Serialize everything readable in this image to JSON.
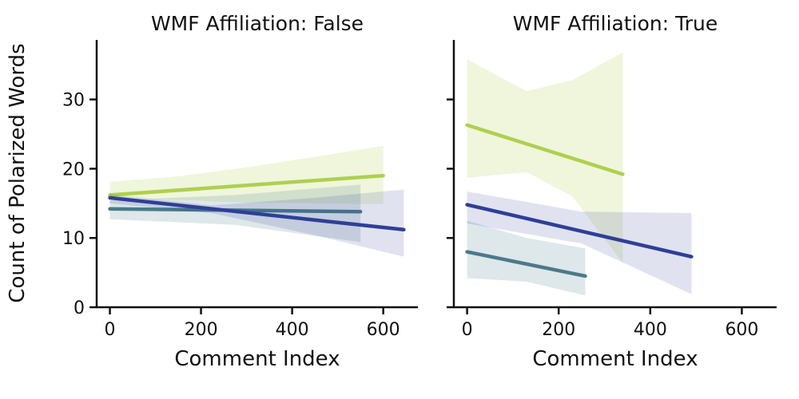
{
  "figure": {
    "background": "#ffffff",
    "text_color": "#111111"
  },
  "chart_data": {
    "type": "line",
    "description": "Two-panel regression plot (lmplot style) with confidence bands, no legend, no grid",
    "xlabel": "Comment Index",
    "ylabel": "Count of Polarized Words",
    "xlim": [
      -29,
      676
    ],
    "ylim": [
      0,
      38.6
    ],
    "xticks": [
      0,
      200,
      400,
      600
    ],
    "yticks": [
      0,
      10,
      20,
      30
    ],
    "grid": false,
    "legend": "none",
    "panels": [
      {
        "title": "WMF Affiliation: False",
        "series": [
          {
            "name": "yellowgreen",
            "color": "#aed04f",
            "band_color": "rgba(174,208,79,0.20)",
            "line": {
              "x": [
                0,
                600
              ],
              "y": [
                16.2,
                19.0
              ]
            },
            "ci_top": {
              "x": [
                0,
                150,
                300,
                450,
                600
              ],
              "y": [
                18.1,
                18.9,
                20.2,
                21.7,
                23.3
              ]
            },
            "ci_bottom": {
              "x": [
                0,
                150,
                300,
                450,
                600
              ],
              "y": [
                15.7,
                15.5,
                15.1,
                15.0,
                14.9
              ]
            }
          },
          {
            "name": "teal",
            "color": "#4a7a89",
            "band_color": "rgba(74,122,137,0.18)",
            "line": {
              "x": [
                0,
                550
              ],
              "y": [
                14.2,
                13.8
              ]
            },
            "ci_top": {
              "x": [
                0,
                275,
                550
              ],
              "y": [
                15.4,
                16.2,
                17.7
              ]
            },
            "ci_bottom": {
              "x": [
                0,
                275,
                550
              ],
              "y": [
                12.7,
                11.9,
                9.4
              ]
            }
          },
          {
            "name": "navy",
            "color": "#2e3f97",
            "band_color": "rgba(46,63,151,0.15)",
            "line": {
              "x": [
                0,
                645
              ],
              "y": [
                15.8,
                11.2
              ]
            },
            "ci_top": {
              "x": [
                0,
                223,
                450,
                645
              ],
              "y": [
                16.3,
                14.7,
                15.8,
                17.0
              ]
            },
            "ci_bottom": {
              "x": [
                0,
                223,
                450,
                645
              ],
              "y": [
                15.0,
                13.6,
                10.4,
                7.3
              ]
            }
          }
        ]
      },
      {
        "title": "WMF Affiliation: True",
        "series": [
          {
            "name": "yellowgreen",
            "color": "#aed04f",
            "band_color": "rgba(174,208,79,0.20)",
            "line": {
              "x": [
                0,
                340
              ],
              "y": [
                26.3,
                19.2
              ]
            },
            "ci_top": {
              "x": [
                0,
                130,
                230,
                340
              ],
              "y": [
                35.8,
                31.2,
                32.8,
                36.8
              ]
            },
            "ci_bottom": {
              "x": [
                0,
                130,
                230,
                340
              ],
              "y": [
                18.7,
                19.5,
                16.0,
                6.4
              ]
            }
          },
          {
            "name": "teal",
            "color": "#4a7a89",
            "band_color": "rgba(74,122,137,0.18)",
            "line": {
              "x": [
                0,
                258
              ],
              "y": [
                8.0,
                4.5
              ]
            },
            "ci_top": {
              "x": [
                0,
                130,
                258
              ],
              "y": [
                12.5,
                10.0,
                8.5
              ]
            },
            "ci_bottom": {
              "x": [
                0,
                130,
                258
              ],
              "y": [
                4.2,
                3.7,
                1.7
              ]
            }
          },
          {
            "name": "navy",
            "color": "#2e3f97",
            "band_color": "rgba(46,63,151,0.15)",
            "line": {
              "x": [
                0,
                490
              ],
              "y": [
                14.8,
                7.3
              ]
            },
            "ci_top": {
              "x": [
                0,
                250,
                490
              ],
              "y": [
                16.7,
                13.8,
                13.6
              ]
            },
            "ci_bottom": {
              "x": [
                0,
                250,
                490
              ],
              "y": [
                12.1,
                9.2,
                1.9
              ]
            }
          }
        ]
      }
    ]
  }
}
